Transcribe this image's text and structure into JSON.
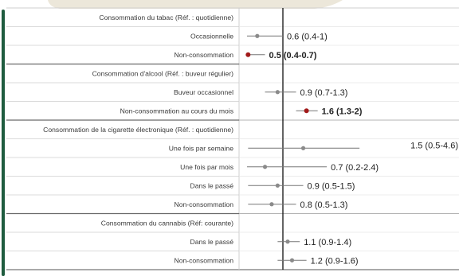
{
  "chart_data": {
    "type": "forest",
    "x_reference": 1,
    "x_log_scale": true,
    "colors": {
      "point_default": "#8a8a8a",
      "point_significant": "#a11a1a",
      "ci_line": "#777777",
      "reference_line": "#111111",
      "left_border_accent": "#1f5c3f",
      "top_tab": "#ece7da",
      "grid": "#cfcfcf"
    },
    "rows": [
      {
        "label": "Consommation du tabac (Réf. : quotidienne)",
        "header": true
      },
      {
        "label": "Occasionnelle",
        "or": 0.6,
        "lo": 0.4,
        "hi": 1.0,
        "text": "0.6 (0.4-1)",
        "significant": false
      },
      {
        "label": "Non-consommation",
        "or": 0.5,
        "lo": 0.4,
        "hi": 0.7,
        "text": "0.5 (0.4-0.7)",
        "significant": true
      },
      {
        "label": "Consommation d'alcool (Réf. : buveur régulier)",
        "header": true
      },
      {
        "label": "Buveur occasionnel",
        "or": 0.9,
        "lo": 0.7,
        "hi": 1.3,
        "text": "0.9 (0.7-1.3)",
        "significant": false
      },
      {
        "label": "Non-consommation au cours du mois",
        "or": 1.6,
        "lo": 1.3,
        "hi": 2.0,
        "text": "1.6 (1.3-2)",
        "significant": true
      },
      {
        "label": "Consommation de la cigarette électronique (Réf. : quotidienne)",
        "header": true
      },
      {
        "label": "Une fois par semaine",
        "or": 1.5,
        "lo": 0.5,
        "hi": 4.6,
        "text": "1.5 (0.5-4.6)",
        "significant": false
      },
      {
        "label": "Une fois par mois",
        "or": 0.7,
        "lo": 0.2,
        "hi": 2.4,
        "text": "0.7 (0.2-2.4)",
        "significant": false
      },
      {
        "label": "Dans le passé",
        "or": 0.9,
        "lo": 0.5,
        "hi": 1.5,
        "text": "0.9 (0.5-1.5)",
        "significant": false
      },
      {
        "label": "Non-consommation",
        "or": 0.8,
        "lo": 0.5,
        "hi": 1.3,
        "text": "0.8 (0.5-1.3)",
        "significant": false
      },
      {
        "label": "Consommation du cannabis (Réf: courante)",
        "header": true
      },
      {
        "label": "Dans le passé",
        "or": 1.1,
        "lo": 0.9,
        "hi": 1.4,
        "text": "1.1 (0.9-1.4)",
        "significant": false
      },
      {
        "label": "Non-consommation",
        "or": 1.2,
        "lo": 0.9,
        "hi": 1.6,
        "text": "1.2 (0.9-1.6)",
        "significant": false
      }
    ]
  }
}
